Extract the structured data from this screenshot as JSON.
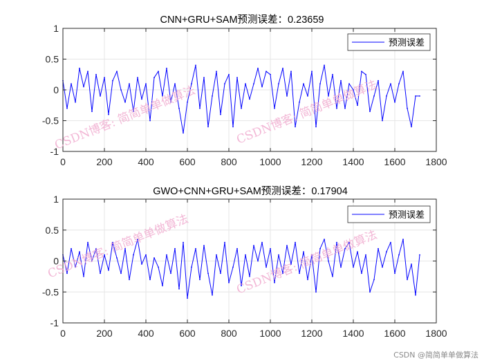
{
  "colors": {
    "series": "#0000ff",
    "grid": "#e6e6e6",
    "axis": "#262626",
    "watermark": "#f0a6cc"
  },
  "chart_data": [
    {
      "type": "line",
      "title": "CNN+GRU+SAM预测误差：0.23659",
      "xlabel": "",
      "ylabel": "",
      "xlim": [
        0,
        1800
      ],
      "ylim": [
        -1,
        1
      ],
      "xticks": [
        0,
        200,
        400,
        600,
        800,
        1000,
        1200,
        1400,
        1600,
        1800
      ],
      "yticks": [
        -1,
        -0.5,
        0,
        0.5,
        1
      ],
      "grid": true,
      "legend": {
        "position": "top-right",
        "entries": [
          "预测误差"
        ]
      },
      "series": [
        {
          "name": "预测误差",
          "color": "#0000ff",
          "x": [
            0,
            20,
            40,
            60,
            80,
            100,
            120,
            140,
            160,
            180,
            200,
            220,
            240,
            260,
            280,
            300,
            320,
            340,
            360,
            380,
            400,
            420,
            440,
            460,
            480,
            500,
            520,
            540,
            560,
            580,
            600,
            620,
            640,
            660,
            680,
            700,
            720,
            740,
            760,
            780,
            800,
            820,
            840,
            860,
            880,
            900,
            920,
            940,
            960,
            980,
            1000,
            1020,
            1040,
            1060,
            1080,
            1100,
            1120,
            1140,
            1160,
            1180,
            1200,
            1220,
            1240,
            1260,
            1280,
            1300,
            1320,
            1340,
            1360,
            1380,
            1400,
            1420,
            1440,
            1460,
            1480,
            1500,
            1520,
            1540,
            1560,
            1580,
            1600,
            1620,
            1640,
            1660,
            1680,
            1700,
            1720
          ],
          "y": [
            0.15,
            -0.3,
            0.1,
            -0.2,
            0.35,
            0.05,
            0.3,
            -0.35,
            0.25,
            -0.1,
            0.2,
            -0.4,
            0.15,
            0.3,
            0.0,
            -0.2,
            0.1,
            -0.35,
            0.2,
            -0.15,
            0.1,
            -0.5,
            0.2,
            0.3,
            -0.1,
            0.35,
            -0.2,
            0.1,
            -0.3,
            -0.7,
            -0.2,
            0.1,
            0.4,
            -0.3,
            0.2,
            -0.6,
            -0.1,
            0.3,
            -0.4,
            0.1,
            0.25,
            -0.6,
            0.2,
            -0.3,
            0.1,
            -0.15,
            0.1,
            0.35,
            0.05,
            0.3,
            0.25,
            -0.3,
            0.1,
            0.35,
            -0.1,
            0.3,
            -0.6,
            -0.2,
            0.1,
            -0.1,
            0.3,
            -0.6,
            0.1,
            0.4,
            -0.1,
            0.25,
            -0.3,
            0.15,
            -0.3,
            0.1,
            0.0,
            -0.25,
            0.3,
            0.25,
            -0.35,
            -0.1,
            0.15,
            -0.5,
            -0.1,
            0.1,
            -0.2,
            0.1,
            0.3,
            -0.3,
            -0.6,
            -0.1,
            -0.1
          ]
        }
      ]
    },
    {
      "type": "line",
      "title": "GWO+CNN+GRU+SAM预测误差：0.17904",
      "xlabel": "",
      "ylabel": "",
      "xlim": [
        0,
        1800
      ],
      "ylim": [
        -1,
        1
      ],
      "xticks": [
        0,
        200,
        400,
        600,
        800,
        1000,
        1200,
        1400,
        1600,
        1800
      ],
      "yticks": [
        -1,
        -0.5,
        0,
        0.5,
        1
      ],
      "grid": true,
      "legend": {
        "position": "top-right",
        "entries": [
          "预测误差"
        ]
      },
      "series": [
        {
          "name": "预测误差",
          "color": "#0000ff",
          "x": [
            0,
            20,
            40,
            60,
            80,
            100,
            120,
            140,
            160,
            180,
            200,
            220,
            240,
            260,
            280,
            300,
            320,
            340,
            360,
            380,
            400,
            420,
            440,
            460,
            480,
            500,
            520,
            540,
            560,
            580,
            600,
            620,
            640,
            660,
            680,
            700,
            720,
            740,
            760,
            780,
            800,
            820,
            840,
            860,
            880,
            900,
            920,
            940,
            960,
            980,
            1000,
            1020,
            1040,
            1060,
            1080,
            1100,
            1120,
            1140,
            1160,
            1180,
            1200,
            1220,
            1240,
            1260,
            1280,
            1300,
            1320,
            1340,
            1360,
            1380,
            1400,
            1420,
            1440,
            1460,
            1480,
            1500,
            1520,
            1540,
            1560,
            1580,
            1600,
            1620,
            1640,
            1660,
            1680,
            1700,
            1720
          ],
          "y": [
            0.1,
            -0.2,
            0.2,
            -0.1,
            0.15,
            -0.25,
            0.3,
            0.0,
            0.2,
            -0.2,
            0.1,
            -0.15,
            0.3,
            0.05,
            -0.2,
            0.2,
            -0.3,
            0.1,
            0.35,
            -0.05,
            0.1,
            -0.3,
            0.05,
            -0.1,
            -0.4,
            0.1,
            -0.2,
            0.2,
            -0.45,
            0.3,
            -0.6,
            -0.1,
            0.2,
            -0.3,
            0.25,
            -0.2,
            -0.55,
            0.1,
            -0.2,
            0.3,
            -0.35,
            -0.1,
            0.2,
            -0.4,
            0.1,
            -0.25,
            0.25,
            0.0,
            0.3,
            -0.1,
            0.2,
            -0.35,
            0.1,
            -0.2,
            0.25,
            -0.05,
            0.3,
            -0.2,
            0.15,
            -0.3,
            0.1,
            -0.5,
            0.2,
            0.35,
            0.0,
            -0.25,
            0.3,
            -0.1,
            0.2,
            0.3,
            -0.1,
            0.15,
            -0.2,
            0.1,
            -0.5,
            -0.3,
            0.2,
            -0.1,
            0.15,
            0.3,
            -0.2,
            0.1,
            0.35,
            -0.3,
            -0.05,
            -0.55,
            0.1
          ]
        }
      ]
    }
  ],
  "watermark": {
    "primary": "CSDN博客: 简简单单做算法",
    "corner": "CSDN @简简单单做算法"
  }
}
